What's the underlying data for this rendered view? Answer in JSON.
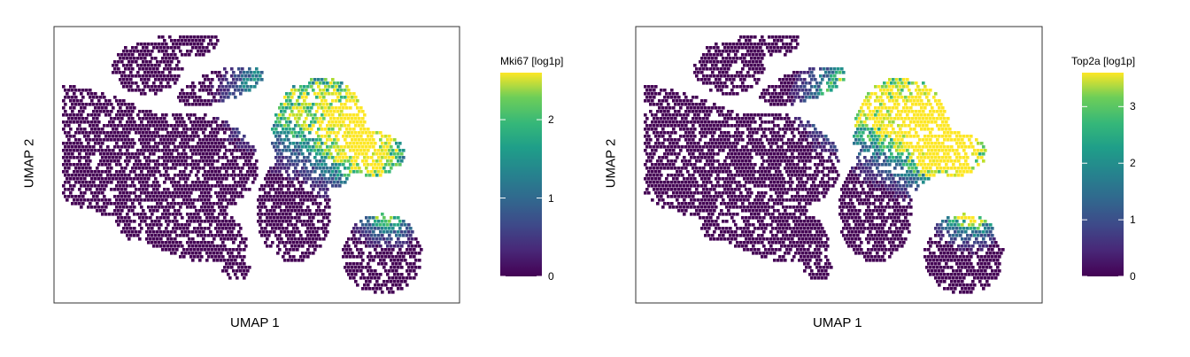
{
  "chart_data": [
    {
      "type": "scatter",
      "subtype": "hexbin-embedding",
      "xlabel": "UMAP 1",
      "ylabel": "UMAP 2",
      "legend_title": "Mki67 [log1p]",
      "colormap": "viridis",
      "color_range": [
        0,
        2.6
      ],
      "colorbar_ticks": [
        0,
        1,
        2
      ],
      "legend_position": "right",
      "grid": false,
      "colors": {
        "low": "#440154",
        "mid": "#21918c",
        "high": "#fde725"
      }
    },
    {
      "type": "scatter",
      "subtype": "hexbin-embedding",
      "xlabel": "UMAP 1",
      "ylabel": "UMAP 2",
      "legend_title": "Top2a [log1p]",
      "colormap": "viridis",
      "color_range": [
        0,
        3.6
      ],
      "colorbar_ticks": [
        0,
        1,
        2,
        3
      ],
      "legend_position": "right",
      "grid": false,
      "colors": {
        "low": "#440154",
        "mid": "#21918c",
        "high": "#fde725"
      }
    }
  ]
}
